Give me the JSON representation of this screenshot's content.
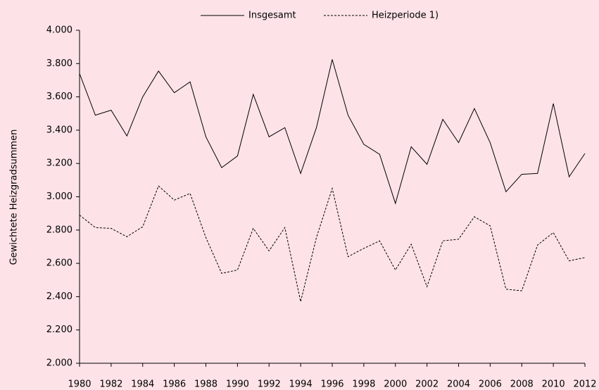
{
  "chart_data": {
    "type": "line",
    "y_label": "Gewichtete Heizgradsummen",
    "x": [
      1980,
      1981,
      1982,
      1983,
      1984,
      1985,
      1986,
      1987,
      1988,
      1989,
      1990,
      1991,
      1992,
      1993,
      1994,
      1995,
      1996,
      1997,
      1998,
      1999,
      2000,
      2001,
      2002,
      2003,
      2004,
      2005,
      2006,
      2007,
      2008,
      2009,
      2010,
      2011,
      2012
    ],
    "xlim": [
      1980,
      2012
    ],
    "xticks": [
      1980,
      1982,
      1984,
      1986,
      1988,
      1990,
      1992,
      1994,
      1996,
      1998,
      2000,
      2002,
      2004,
      2006,
      2008,
      2010,
      2012
    ],
    "ylim": [
      2000,
      4000
    ],
    "yticks": [
      {
        "value": 2000,
        "label": "2.000"
      },
      {
        "value": 2200,
        "label": "2.200"
      },
      {
        "value": 2400,
        "label": "2.400"
      },
      {
        "value": 2600,
        "label": "2.600"
      },
      {
        "value": 2800,
        "label": "2.800"
      },
      {
        "value": 3000,
        "label": "3.000"
      },
      {
        "value": 3200,
        "label": "3.200"
      },
      {
        "value": 3400,
        "label": "3.400"
      },
      {
        "value": 3600,
        "label": "3.600"
      },
      {
        "value": 3800,
        "label": "3.800"
      },
      {
        "value": 4000,
        "label": "4.000"
      }
    ],
    "grid": false,
    "legend": "top",
    "series": [
      {
        "name": "Insgesamt",
        "color": "#000000",
        "style": "solid",
        "values": [
          3740,
          3490,
          3520,
          3365,
          3600,
          3755,
          3625,
          3690,
          3360,
          3175,
          3245,
          3615,
          3360,
          3415,
          3140,
          3415,
          3825,
          3490,
          3315,
          3255,
          2960,
          3300,
          3195,
          3465,
          3325,
          3530,
          3325,
          3030,
          3135,
          3140,
          3560,
          3120,
          3260
        ]
      },
      {
        "name": "Heizperiode 1)",
        "color": "#000000",
        "style": "dashed",
        "values": [
          2890,
          2815,
          2810,
          2760,
          2820,
          3065,
          2980,
          3020,
          2755,
          2540,
          2560,
          2810,
          2675,
          2815,
          2370,
          2755,
          3050,
          2640,
          2690,
          2735,
          2560,
          2715,
          2460,
          2735,
          2745,
          2880,
          2825,
          2445,
          2435,
          2710,
          2785,
          2615,
          2635
        ]
      }
    ]
  }
}
